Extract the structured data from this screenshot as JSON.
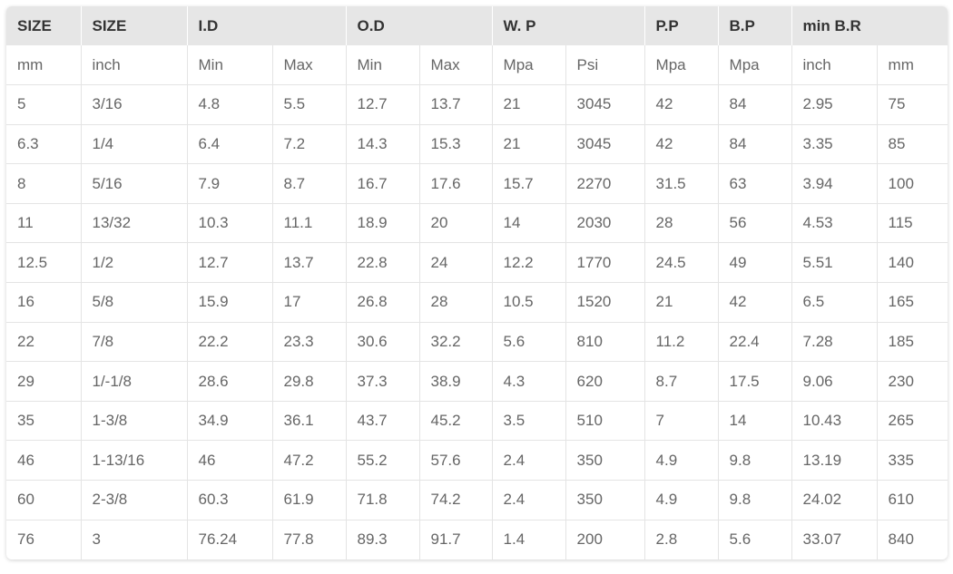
{
  "header": [
    "SIZE",
    "SIZE",
    "I.D",
    "O.D",
    "W. P",
    "P.P",
    "B.P",
    "min B.R"
  ],
  "units": [
    "mm",
    "inch",
    "Min",
    "Max",
    "Min",
    "Max",
    "Mpa",
    "Psi",
    "Mpa",
    "Mpa",
    "inch",
    "mm"
  ],
  "rows": [
    [
      "5",
      "3/16",
      "4.8",
      "5.5",
      "12.7",
      "13.7",
      "21",
      "3045",
      "42",
      "84",
      "2.95",
      "75"
    ],
    [
      "6.3",
      "1/4",
      "6.4",
      "7.2",
      "14.3",
      "15.3",
      "21",
      "3045",
      "42",
      "84",
      "3.35",
      "85"
    ],
    [
      "8",
      "5/16",
      "7.9",
      "8.7",
      "16.7",
      "17.6",
      "15.7",
      "2270",
      "31.5",
      "63",
      "3.94",
      "100"
    ],
    [
      "11",
      "13/32",
      "10.3",
      "11.1",
      "18.9",
      "20",
      "14",
      "2030",
      "28",
      "56",
      "4.53",
      "115"
    ],
    [
      "12.5",
      "1/2",
      "12.7",
      "13.7",
      "22.8",
      "24",
      "12.2",
      "1770",
      "24.5",
      "49",
      "5.51",
      "140"
    ],
    [
      "16",
      "5/8",
      "15.9",
      "17",
      "26.8",
      "28",
      "10.5",
      "1520",
      "21",
      "42",
      "6.5",
      "165"
    ],
    [
      "22",
      "7/8",
      "22.2",
      "23.3",
      "30.6",
      "32.2",
      "5.6",
      "810",
      "11.2",
      "22.4",
      "7.28",
      "185"
    ],
    [
      "29",
      "1/-1/8",
      "28.6",
      "29.8",
      "37.3",
      "38.9",
      "4.3",
      "620",
      "8.7",
      "17.5",
      "9.06",
      "230"
    ],
    [
      "35",
      "1-3/8",
      "34.9",
      "36.1",
      "43.7",
      "45.2",
      "3.5",
      "510",
      "7",
      "14",
      "10.43",
      "265"
    ],
    [
      "46",
      "1-13/16",
      "46",
      "47.2",
      "55.2",
      "57.6",
      "2.4",
      "350",
      "4.9",
      "9.8",
      "13.19",
      "335"
    ],
    [
      "60",
      "2-3/8",
      "60.3",
      "61.9",
      "71.8",
      "74.2",
      "2.4",
      "350",
      "4.9",
      "9.8",
      "24.02",
      "610"
    ],
    [
      "76",
      "3",
      "76.24",
      "77.8",
      "89.3",
      "91.7",
      "1.4",
      "200",
      "2.8",
      "5.6",
      "33.07",
      "840"
    ]
  ],
  "colors": {
    "header_bg": "#e6e6e6",
    "header_text": "#333333",
    "cell_text": "#666666",
    "grid_line": "#e4e4e4"
  }
}
